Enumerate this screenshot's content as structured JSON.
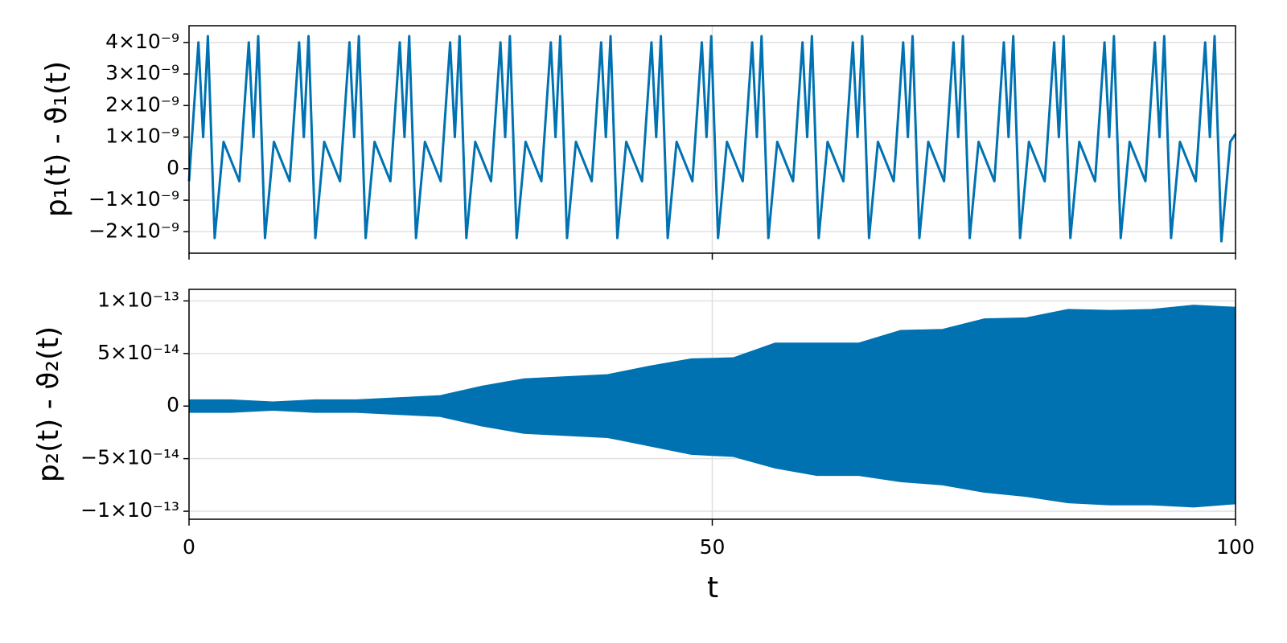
{
  "chart_data": [
    {
      "type": "line",
      "ylabel": "p₁(t) - ϑ₁(t)",
      "color": "#0072b2",
      "grid": true,
      "xlim": [
        0,
        100
      ],
      "xticks": [
        0,
        50,
        100
      ],
      "ylim": [
        -2.68e-09,
        4.53e-09
      ],
      "yticks": [
        {
          "value": -2e-09,
          "label": "−2×10⁻⁹"
        },
        {
          "value": -1e-09,
          "label": "−1×10⁻⁹"
        },
        0,
        {
          "value": 1e-09,
          "label": "1×10⁻⁹"
        },
        {
          "value": 2e-09,
          "label": "2×10⁻⁹"
        },
        {
          "value": 3e-09,
          "label": "3×10⁻⁹"
        },
        {
          "value": 4e-09,
          "label": "4×10⁻⁹"
        }
      ],
      "x": [
        0,
        0.9,
        1.35,
        1.8,
        2.45,
        3.3,
        4.81,
        5.71,
        6.16,
        6.61,
        7.26,
        8.11,
        9.62,
        10.52,
        10.97,
        11.42,
        12.07,
        12.92,
        14.43,
        15.33,
        15.78,
        16.23,
        16.88,
        17.73,
        19.24,
        20.14,
        20.59,
        21.04,
        21.69,
        22.54,
        24.05,
        24.95,
        25.4,
        25.85,
        26.5,
        27.35,
        28.86,
        29.76,
        30.21,
        30.66,
        31.31,
        32.16,
        33.67,
        34.57,
        35.02,
        35.47,
        36.12,
        36.97,
        38.48,
        39.38,
        39.83,
        40.28,
        40.93,
        41.78,
        43.29,
        44.19,
        44.64,
        45.09,
        45.74,
        46.59,
        48.1,
        49,
        49.45,
        49.9,
        50.55,
        51.4,
        52.91,
        53.81,
        54.26,
        54.71,
        55.36,
        56.21,
        57.72,
        58.62,
        59.07,
        59.52,
        60.17,
        61.02,
        62.53,
        63.43,
        63.88,
        64.33,
        64.98,
        65.83,
        67.34,
        68.24,
        68.69,
        69.14,
        69.79,
        70.64,
        72.15,
        73.05,
        73.5,
        73.95,
        74.6,
        75.45,
        76.96,
        77.86,
        78.31,
        78.76,
        79.41,
        80.26,
        81.77,
        82.67,
        83.12,
        83.57,
        84.22,
        85.07,
        86.58,
        87.48,
        87.93,
        88.38,
        89.03,
        89.88,
        91.39,
        92.29,
        92.74,
        93.19,
        93.84,
        94.69,
        96.2,
        97.1,
        97.55,
        98,
        98.65,
        99.5,
        100
      ],
      "values": [
        -4e-10,
        4e-09,
        1e-09,
        4.2e-09,
        -2.2e-09,
        8.5e-10,
        -4e-10,
        4e-09,
        1e-09,
        4.2e-09,
        -2.2e-09,
        8.5e-10,
        -4e-10,
        4e-09,
        1e-09,
        4.2e-09,
        -2.2e-09,
        8.5e-10,
        -4e-10,
        4e-09,
        1e-09,
        4.2e-09,
        -2.2e-09,
        8.5e-10,
        -4e-10,
        4e-09,
        1e-09,
        4.2e-09,
        -2.2e-09,
        8.5e-10,
        -4e-10,
        4e-09,
        1e-09,
        4.2e-09,
        -2.2e-09,
        8.5e-10,
        -4e-10,
        4e-09,
        1e-09,
        4.2e-09,
        -2.2e-09,
        8.5e-10,
        -4e-10,
        4e-09,
        1e-09,
        4.2e-09,
        -2.2e-09,
        8.5e-10,
        -4e-10,
        4e-09,
        1e-09,
        4.2e-09,
        -2.2e-09,
        8.5e-10,
        -4e-10,
        4e-09,
        1e-09,
        4.2e-09,
        -2.2e-09,
        8.5e-10,
        -4e-10,
        4e-09,
        1e-09,
        4.2e-09,
        -2.2e-09,
        8.5e-10,
        -4e-10,
        4e-09,
        1e-09,
        4.2e-09,
        -2.2e-09,
        8.5e-10,
        -4e-10,
        4e-09,
        1e-09,
        4.2e-09,
        -2.2e-09,
        8.5e-10,
        -4e-10,
        4e-09,
        1e-09,
        4.2e-09,
        -2.2e-09,
        8.5e-10,
        -4e-10,
        4e-09,
        1e-09,
        4.2e-09,
        -2.2e-09,
        8.5e-10,
        -4e-10,
        4e-09,
        1e-09,
        4.2e-09,
        -2.2e-09,
        8.5e-10,
        -4e-10,
        4e-09,
        1e-09,
        4.2e-09,
        -2.2e-09,
        8.5e-10,
        -4e-10,
        4e-09,
        1e-09,
        4.2e-09,
        -2.2e-09,
        8.5e-10,
        -4e-10,
        4e-09,
        1e-09,
        4.2e-09,
        -2.2e-09,
        8.5e-10,
        -4e-10,
        4e-09,
        1e-09,
        4.2e-09,
        -2.2e-09,
        8.5e-10,
        -4e-10,
        4e-09,
        1e-09,
        4.2e-09,
        -2.3e-09,
        8.5e-10,
        1.1e-09
      ]
    },
    {
      "type": "band",
      "ylabel": "p₂(t) - ϑ₂(t)",
      "xlabel": "t",
      "color": "#0072b2",
      "grid": true,
      "xlim": [
        0,
        100
      ],
      "xticks": [
        0,
        50,
        100
      ],
      "ylim": [
        -1.076e-13,
        1.11e-13
      ],
      "yticks": [
        {
          "value": -1e-13,
          "label": "−1×10⁻¹³"
        },
        {
          "value": -5e-14,
          "label": "−5×10⁻¹⁴"
        },
        0,
        {
          "value": 5e-14,
          "label": "5×10⁻¹⁴"
        },
        {
          "value": 1e-13,
          "label": "1×10⁻¹³"
        }
      ],
      "x": [
        0,
        4,
        8,
        12,
        16,
        20,
        24,
        28,
        32,
        36,
        40,
        44,
        48,
        52,
        56,
        60,
        64,
        68,
        72,
        76,
        80,
        84,
        88,
        92,
        96,
        100
      ],
      "upper": [
        6e-15,
        6e-15,
        4e-15,
        6e-15,
        6e-15,
        8e-15,
        1e-14,
        1.9e-14,
        2.6e-14,
        2.8e-14,
        3e-14,
        3.8e-14,
        4.5e-14,
        4.6e-14,
        6e-14,
        6e-14,
        6e-14,
        7.2e-14,
        7.3e-14,
        8.3e-14,
        8.4e-14,
        9.2e-14,
        9.1e-14,
        9.2e-14,
        9.6e-14,
        9.4e-14
      ],
      "lower": [
        -6e-15,
        -6e-15,
        -4e-15,
        -6e-15,
        -6e-15,
        -8e-15,
        -1e-14,
        -1.9e-14,
        -2.6e-14,
        -2.8e-14,
        -3e-14,
        -3.8e-14,
        -4.6e-14,
        -4.8e-14,
        -5.9e-14,
        -6.6e-14,
        -6.6e-14,
        -7.2e-14,
        -7.5e-14,
        -8.2e-14,
        -8.6e-14,
        -9.2e-14,
        -9.4e-14,
        -9.4e-14,
        -9.6e-14,
        -9.3e-14
      ]
    }
  ]
}
